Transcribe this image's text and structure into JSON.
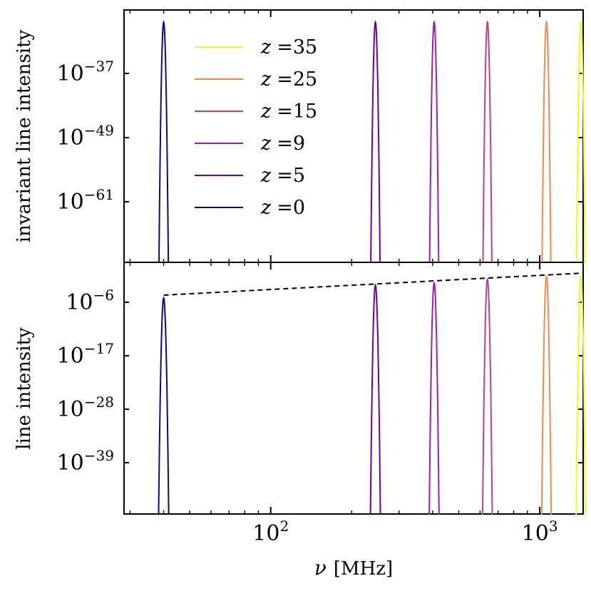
{
  "chart_data": [
    {
      "type": "line",
      "panel": "top",
      "ylabel": "invariant line intensity",
      "yscale": "log",
      "y_ticks": [
        {
          "base": "10",
          "exp": "−37"
        },
        {
          "base": "10",
          "exp": "−49"
        },
        {
          "base": "10",
          "exp": "−61"
        }
      ],
      "legend_position": "upper-left",
      "series": [
        {
          "name": "z =35",
          "z_label": "z",
          "value_label": "=35",
          "color": "#f0f921",
          "center_mhz": 1421
        },
        {
          "name": "z =25",
          "z_label": "z",
          "value_label": "=25",
          "color": "#f48849",
          "center_mhz": 1059
        },
        {
          "name": "z =15",
          "z_label": "z",
          "value_label": "=15",
          "color": "#c33e85",
          "center_mhz": 639
        },
        {
          "name": "z =9",
          "z_label": "z",
          "value_label": "=9",
          "color": "#a21cab",
          "center_mhz": 405
        },
        {
          "name": "z =5",
          "z_label": "z",
          "value_label": "=5",
          "color": "#6a00a8",
          "center_mhz": 245
        },
        {
          "name": "z =0",
          "z_label": "z",
          "value_label": "=0",
          "color": "#0d0887",
          "center_mhz": 40
        }
      ]
    },
    {
      "type": "line",
      "panel": "bottom",
      "ylabel": "line intensity",
      "xlabel_greek": "ν",
      "xlabel_unit": "[MHz]",
      "xscale": "log",
      "xlim": [
        28.5,
        1450
      ],
      "x_ticks": [
        {
          "value": 100,
          "base": "10",
          "exp": "2"
        },
        {
          "value": 1000,
          "base": "10",
          "exp": "3"
        }
      ],
      "yscale": "log",
      "y_ticks": [
        {
          "base": "10",
          "exp": "−6"
        },
        {
          "base": "10",
          "exp": "−17"
        },
        {
          "base": "10",
          "exp": "−28"
        },
        {
          "base": "10",
          "exp": "−39"
        }
      ],
      "envelope": {
        "style": "dashed",
        "color": "#000000"
      },
      "series_ref": "same as top panel"
    }
  ]
}
